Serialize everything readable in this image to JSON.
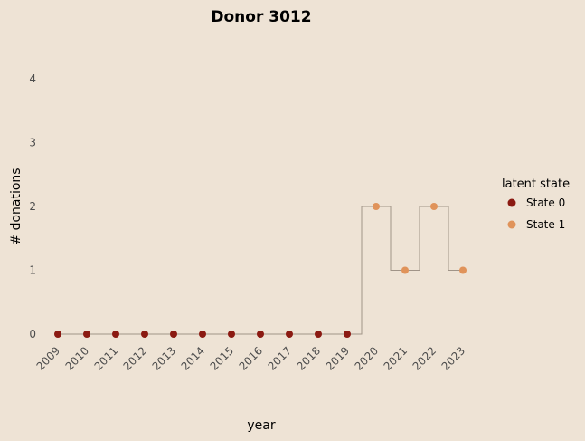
{
  "chart_data": {
    "type": "scatter",
    "title": "Donor 3012",
    "xlabel": "year",
    "ylabel": "# donations",
    "x": [
      2009,
      2010,
      2011,
      2012,
      2013,
      2014,
      2015,
      2016,
      2017,
      2018,
      2019,
      2020,
      2021,
      2022,
      2023
    ],
    "y": [
      0,
      0,
      0,
      0,
      0,
      0,
      0,
      0,
      0,
      0,
      0,
      2,
      1,
      2,
      1
    ],
    "state": [
      0,
      0,
      0,
      0,
      0,
      0,
      0,
      0,
      0,
      0,
      0,
      1,
      1,
      1,
      1
    ],
    "x_ticks": [
      "2009",
      "2010",
      "2011",
      "2012",
      "2013",
      "2014",
      "2015",
      "2016",
      "2017",
      "2018",
      "2019",
      "2020",
      "2021",
      "2022",
      "2023"
    ],
    "y_ticks": [
      "0",
      "1",
      "2",
      "3",
      "4"
    ],
    "xlim": [
      2009,
      2023
    ],
    "ylim": [
      0,
      4
    ],
    "step_line": true,
    "grid": false,
    "legend": {
      "title": "latent state",
      "placement": "right",
      "entries": [
        {
          "label": "State 0",
          "color": "#8B1A12"
        },
        {
          "label": "State 1",
          "color": "#E0935A"
        }
      ]
    },
    "colors": {
      "background": "#EEE3D5",
      "step_line": "#A09488",
      "state0": "#8B1A12",
      "state1": "#E0935A"
    }
  }
}
